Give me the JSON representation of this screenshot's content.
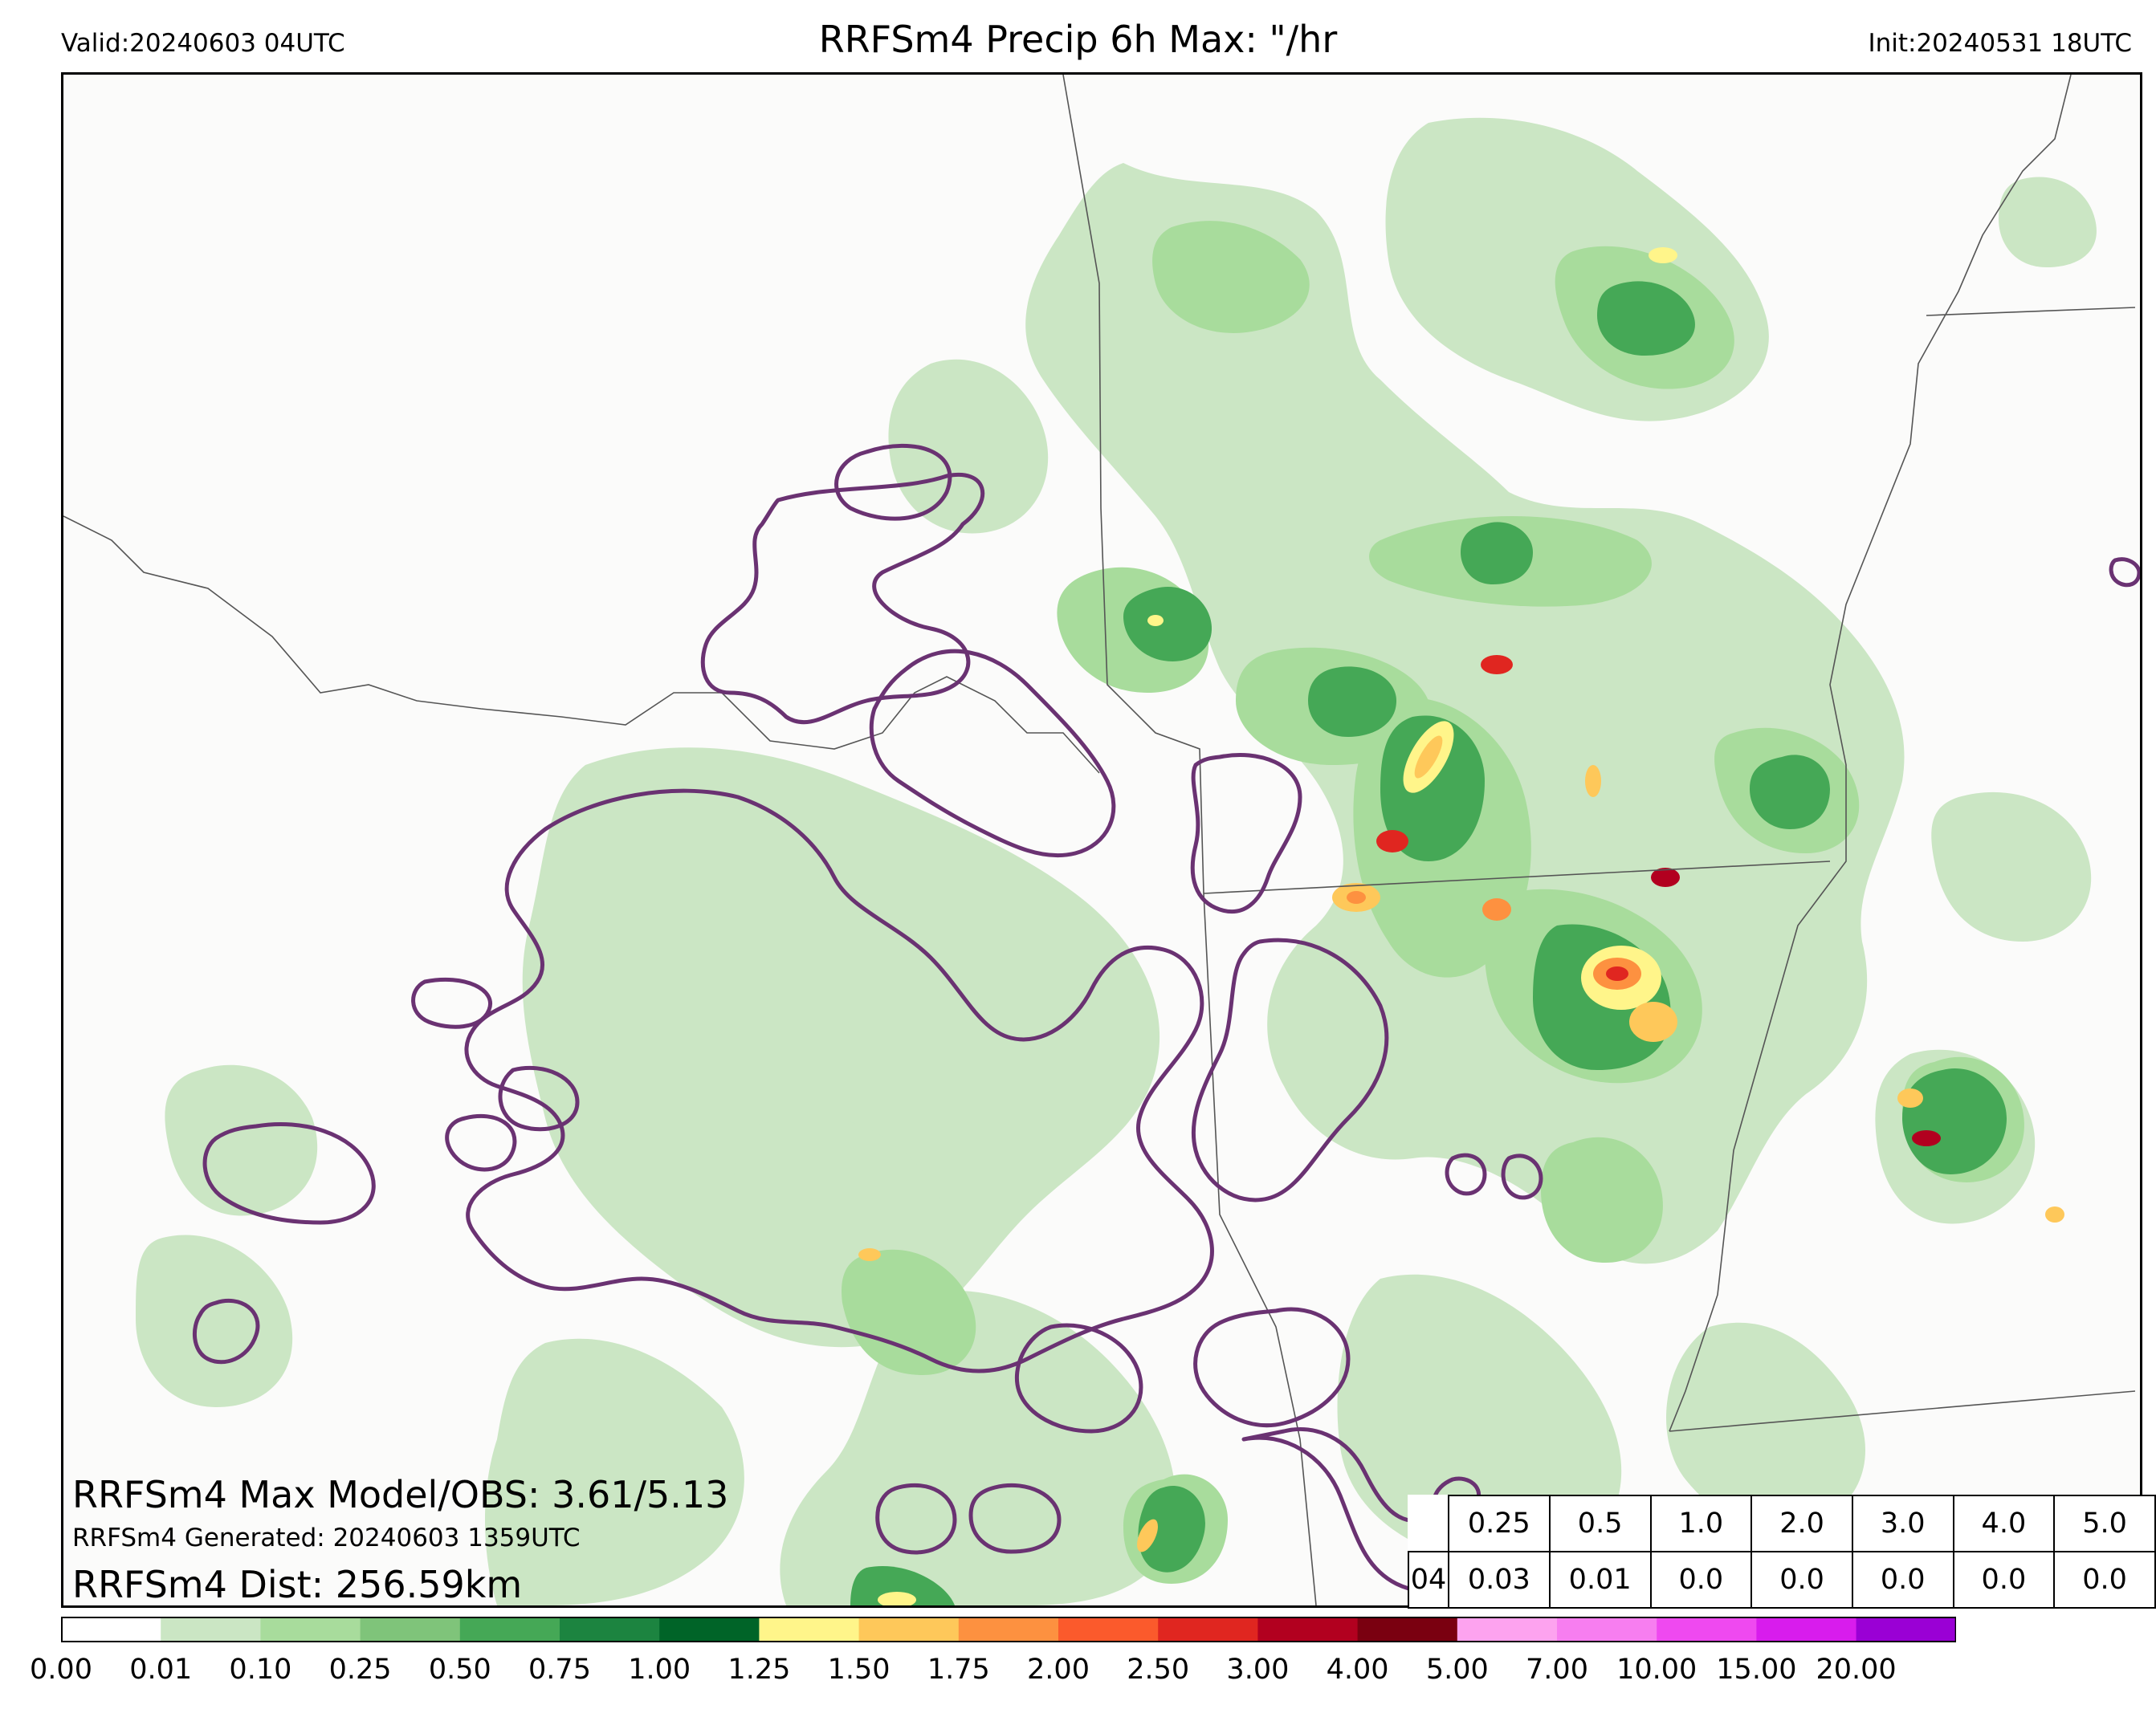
{
  "header": {
    "valid": "Valid:20240603 04UTC",
    "title": "RRFSm4 Precip 6h Max: \"/hr",
    "init": "Init:20240531 18UTC"
  },
  "stats": {
    "max_model_obs": "RRFSm4 Max Model/OBS: 3.61/5.13",
    "generated": "RRFSm4 Generated: 20240603 1359UTC",
    "distance": "RRFSm4 Dist: 256.59km"
  },
  "threshold_table": {
    "row_label": "04",
    "thresholds": [
      "0.25",
      "0.5",
      "1.0",
      "2.0",
      "3.0",
      "4.0",
      "5.0"
    ],
    "values": [
      "0.03",
      "0.01",
      "0.0",
      "0.0",
      "0.0",
      "0.0",
      "0.0"
    ]
  },
  "colorbar": {
    "tick_labels": [
      "0.00",
      "0.01",
      "0.10",
      "0.25",
      "0.50",
      "0.75",
      "1.00",
      "1.25",
      "1.50",
      "1.75",
      "2.00",
      "2.50",
      "3.00",
      "4.00",
      "5.00",
      "7.00",
      "10.00",
      "15.00",
      "20.00"
    ],
    "colors": [
      "#ffffff",
      "#cbe6c4",
      "#a8dc9c",
      "#7fc47a",
      "#45a856",
      "#1c8440",
      "#006428",
      "#fff58a",
      "#fec85a",
      "#fd9140",
      "#fb5a2c",
      "#e02620",
      "#b2001f",
      "#7a0010",
      "#fda3ef",
      "#f77ef0",
      "#ef49f0",
      "#d81ced",
      "#9a00d5",
      "#6a0093"
    ]
  },
  "map": {
    "obs_contour_color": "#6a3272",
    "border_color": "#555555",
    "precip_colors": {
      "light": "#cbe6c4",
      "light2": "#a8dc9c",
      "mid": "#7fc47a",
      "mid2": "#45a856",
      "dark": "#1c8440",
      "darkest": "#006428",
      "yellow": "#fff58a",
      "orange": "#fec85a",
      "orange2": "#fd9140",
      "red": "#e02620",
      "darkred": "#b2001f"
    }
  }
}
